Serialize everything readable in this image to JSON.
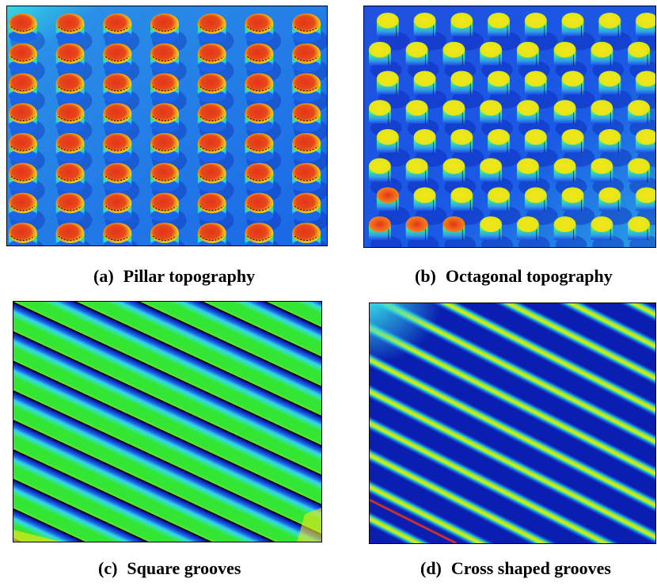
{
  "figure": {
    "panels": [
      {
        "id": "a",
        "letter": "(a)",
        "caption": "Pillar topography"
      },
      {
        "id": "b",
        "letter": "(b)",
        "caption": "Octagonal topography"
      },
      {
        "id": "c",
        "letter": "(c)",
        "caption": "Square grooves"
      },
      {
        "id": "d",
        "letter": "(d)",
        "caption": "Cross shaped grooves"
      }
    ]
  },
  "colors": {
    "background_blue": "#1a66e6",
    "deep_blue": "#0a1fb0",
    "cyan": "#33d6e6",
    "green": "#33e633",
    "yellow": "#f2e61a",
    "red": "#e6331a"
  }
}
